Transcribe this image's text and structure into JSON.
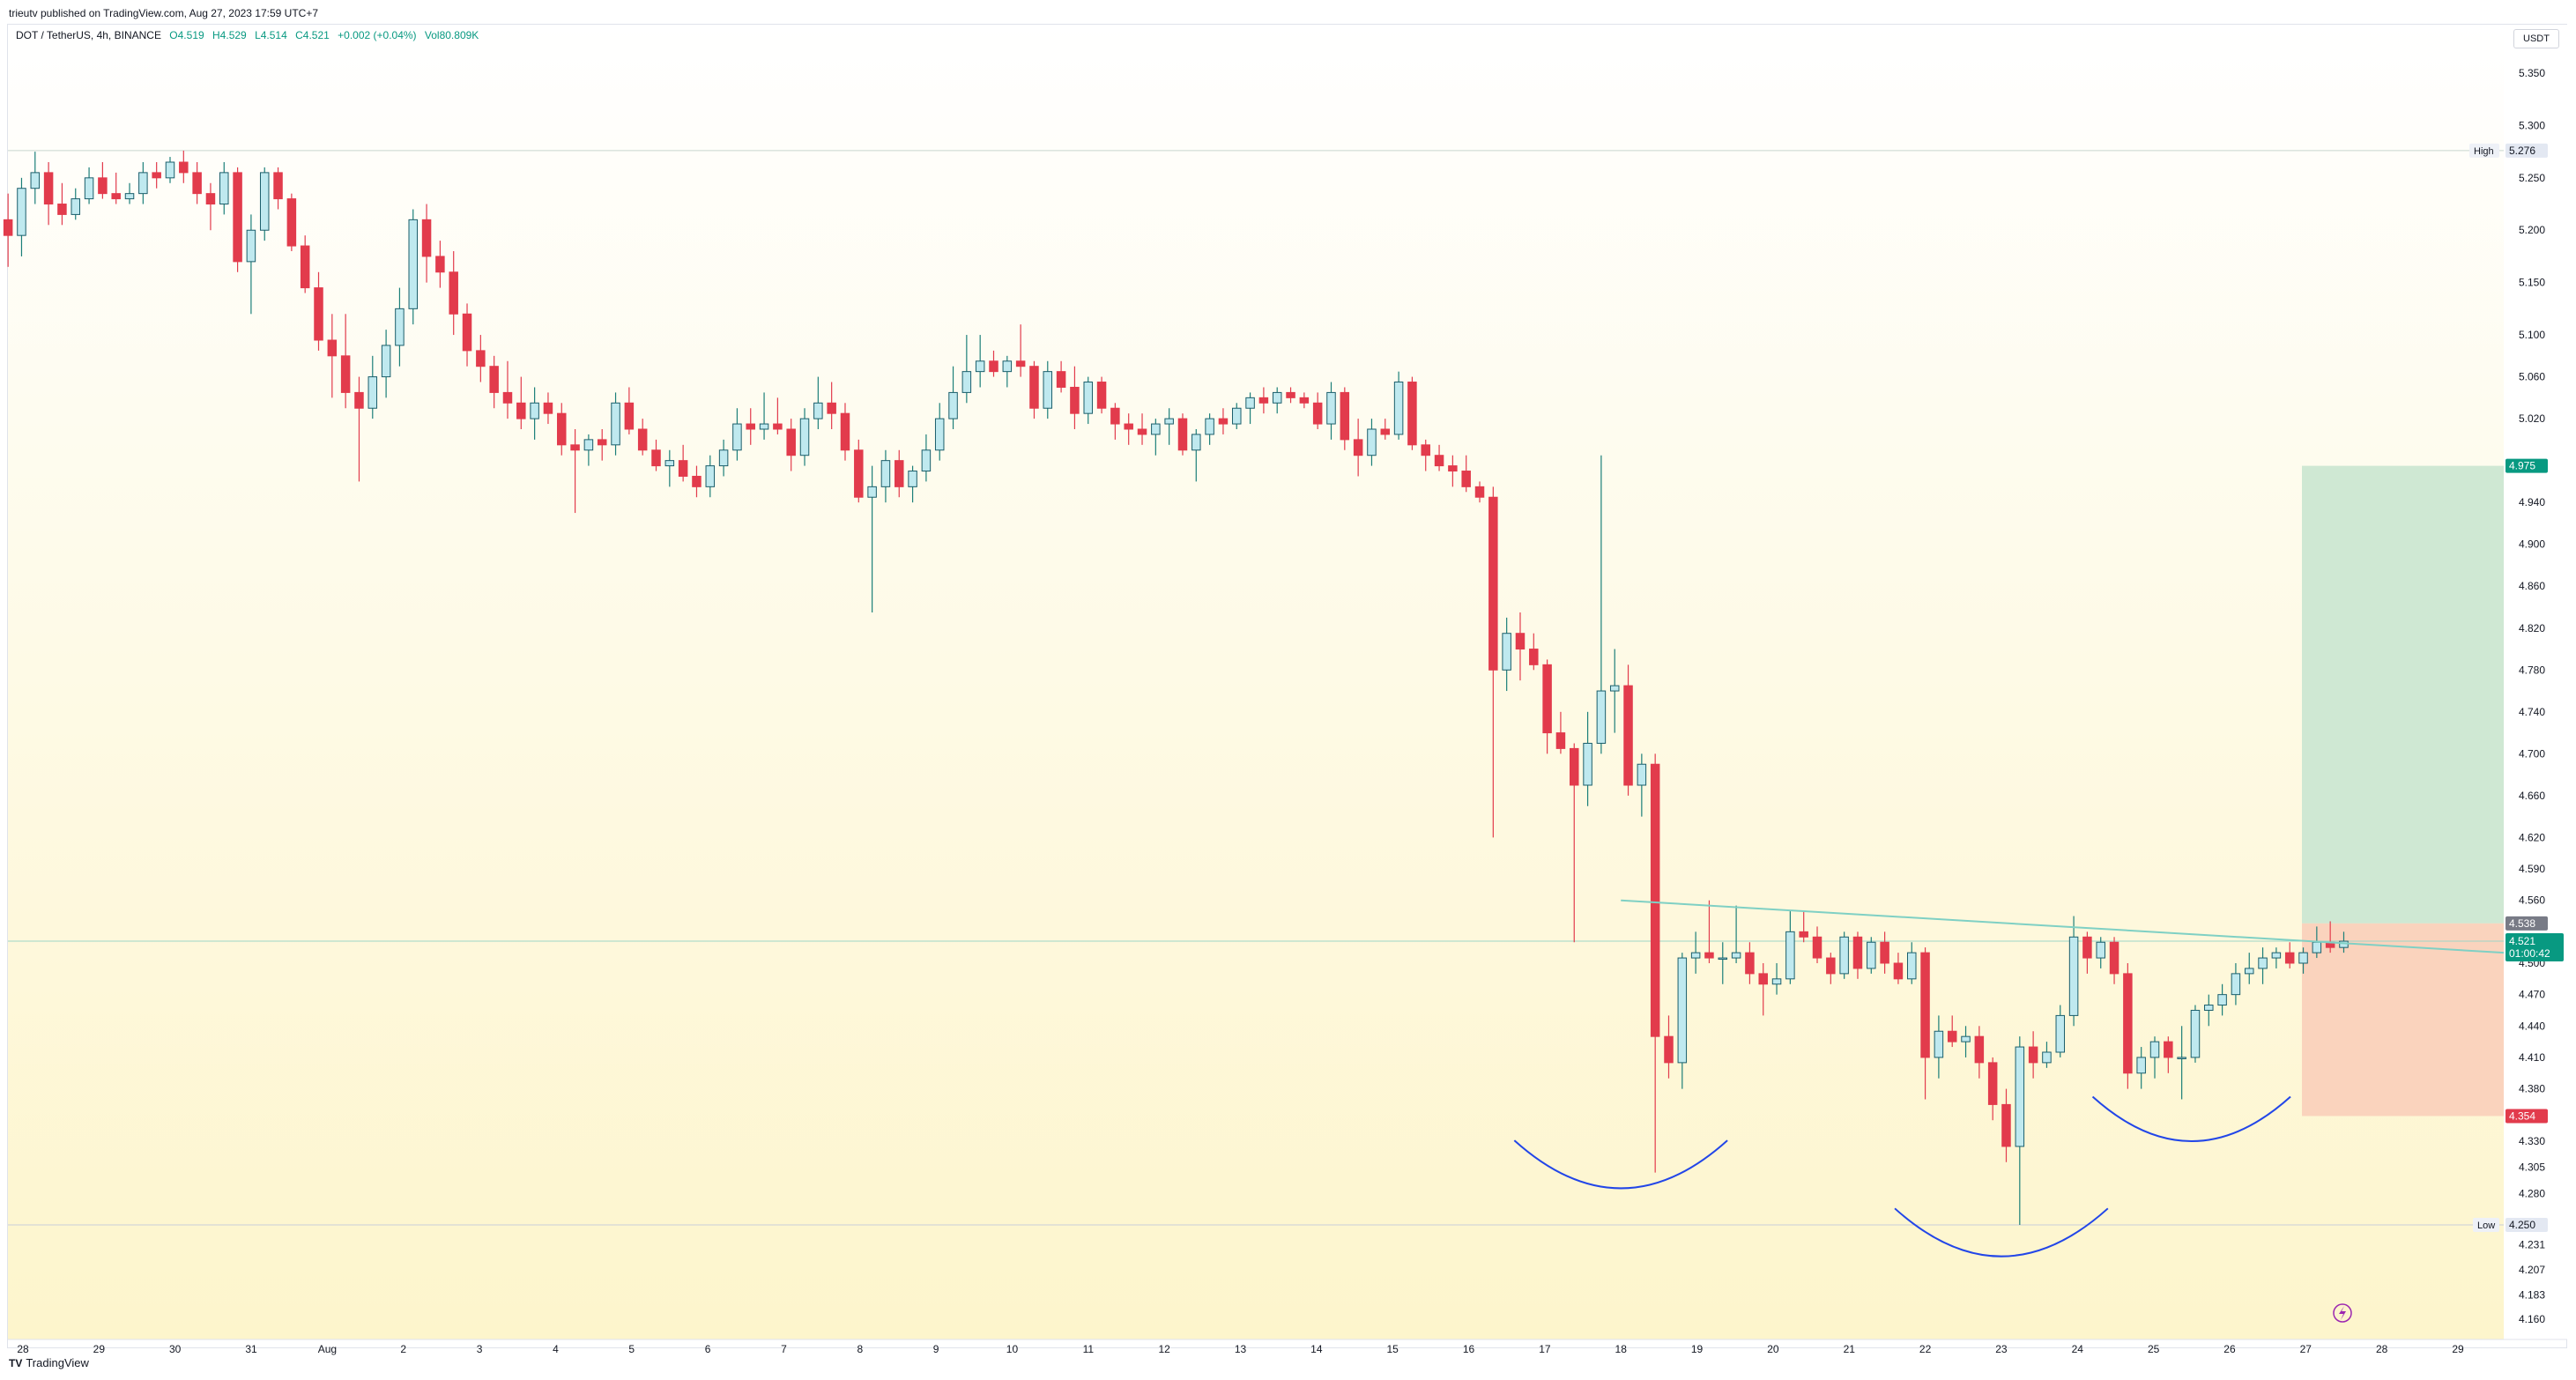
{
  "header": {
    "published": "trieutv published on TradingView.com, Aug 27, 2023 17:59 UTC+7"
  },
  "legend": {
    "symbol": "DOT / TetherUS, 4h, BINANCE",
    "open": "O4.519",
    "high": "H4.529",
    "low": "L4.514",
    "close": "C4.521",
    "change": "+0.002 (+0.04%)",
    "volume": "Vol80.809K"
  },
  "currency": "USDT",
  "footer": {
    "brand": "TradingView"
  },
  "colors": {
    "up": "#089981",
    "up_fill": "#bfe9ef",
    "down": "#e23b4c",
    "bg_top": "#ffffff",
    "bg_bottom": "#fdf6d2",
    "target_zone": "#cfe8d3",
    "stop_zone": "#fad3bd",
    "neckline": "#7fd0c4",
    "arcs": "#2246e8"
  },
  "chart_data": {
    "type": "candlestick",
    "timeframe": "4h",
    "y_axis": {
      "ticks": [
        5.35,
        5.3,
        5.25,
        5.2,
        5.15,
        5.1,
        5.06,
        5.02,
        4.94,
        4.9,
        4.86,
        4.82,
        4.78,
        4.74,
        4.7,
        4.66,
        4.62,
        4.59,
        4.56,
        4.5,
        4.47,
        4.44,
        4.41,
        4.38,
        4.33,
        4.305,
        4.28,
        4.231,
        4.207,
        4.183,
        4.16
      ],
      "range": [
        4.16,
        5.36
      ]
    },
    "x_axis": {
      "labels": [
        "28",
        "29",
        "30",
        "31",
        "Aug",
        "2",
        "3",
        "4",
        "5",
        "6",
        "7",
        "8",
        "9",
        "10",
        "11",
        "12",
        "13",
        "14",
        "15",
        "16",
        "17",
        "18",
        "19",
        "20",
        "21",
        "22",
        "23",
        "24",
        "25",
        "26",
        "27",
        "28",
        "29"
      ],
      "label_day_index": [
        0,
        1,
        2,
        3,
        4,
        5,
        6,
        7,
        8,
        9,
        10,
        11,
        12,
        13,
        14,
        15,
        16,
        17,
        18,
        19,
        20,
        21,
        22,
        23,
        24,
        25,
        26,
        27,
        28,
        29,
        30,
        31,
        32
      ]
    },
    "price_levels": {
      "high": {
        "label": "High",
        "value": 5.276
      },
      "low": {
        "label": "Low",
        "value": 4.25
      },
      "last": {
        "value": "4.521",
        "countdown": "01:00:42"
      },
      "entry": {
        "value": 4.538
      },
      "target": {
        "value": 4.975
      },
      "stop": {
        "value": 4.354
      }
    },
    "patterns": {
      "neckline_from": {
        "day": 21.0,
        "price": 4.56
      },
      "neckline_to": {
        "day": 33.2,
        "price": 4.51
      },
      "arcs": [
        {
          "center_day": 21.0,
          "bottom_price": 4.285,
          "half_width_days": 1.4
        },
        {
          "center_day": 26.0,
          "bottom_price": 4.22,
          "half_width_days": 1.4
        },
        {
          "center_day": 28.5,
          "bottom_price": 4.33,
          "half_width_days": 1.3
        }
      ]
    },
    "candles": [
      [
        5.22,
        5.245,
        5.185,
        5.235
      ],
      [
        5.235,
        5.255,
        5.175,
        5.21
      ],
      [
        5.21,
        5.235,
        5.165,
        5.195
      ],
      [
        5.195,
        5.25,
        5.175,
        5.24
      ],
      [
        5.24,
        5.275,
        5.225,
        5.255
      ],
      [
        5.255,
        5.265,
        5.205,
        5.225
      ],
      [
        5.225,
        5.245,
        5.205,
        5.215
      ],
      [
        5.215,
        5.24,
        5.21,
        5.23
      ],
      [
        5.23,
        5.26,
        5.225,
        5.25
      ],
      [
        5.25,
        5.265,
        5.23,
        5.235
      ],
      [
        5.235,
        5.255,
        5.225,
        5.23
      ],
      [
        5.23,
        5.245,
        5.225,
        5.235
      ],
      [
        5.235,
        5.265,
        5.225,
        5.255
      ],
      [
        5.255,
        5.265,
        5.24,
        5.25
      ],
      [
        5.25,
        5.27,
        5.245,
        5.265
      ],
      [
        5.265,
        5.276,
        5.245,
        5.255
      ],
      [
        5.255,
        5.265,
        5.225,
        5.235
      ],
      [
        5.235,
        5.245,
        5.2,
        5.225
      ],
      [
        5.225,
        5.265,
        5.215,
        5.255
      ],
      [
        5.255,
        5.26,
        5.16,
        5.17
      ],
      [
        5.17,
        5.215,
        5.12,
        5.2
      ],
      [
        5.2,
        5.26,
        5.19,
        5.255
      ],
      [
        5.255,
        5.26,
        5.22,
        5.23
      ],
      [
        5.23,
        5.235,
        5.18,
        5.185
      ],
      [
        5.185,
        5.195,
        5.14,
        5.145
      ],
      [
        5.145,
        5.16,
        5.085,
        5.095
      ],
      [
        5.095,
        5.12,
        5.04,
        5.08
      ],
      [
        5.08,
        5.12,
        5.03,
        5.045
      ],
      [
        5.045,
        5.06,
        4.96,
        5.03
      ],
      [
        5.03,
        5.08,
        5.02,
        5.06
      ],
      [
        5.06,
        5.105,
        5.04,
        5.09
      ],
      [
        5.09,
        5.145,
        5.07,
        5.125
      ],
      [
        5.125,
        5.22,
        5.11,
        5.21
      ],
      [
        5.21,
        5.225,
        5.15,
        5.175
      ],
      [
        5.175,
        5.19,
        5.145,
        5.16
      ],
      [
        5.16,
        5.18,
        5.1,
        5.12
      ],
      [
        5.12,
        5.13,
        5.07,
        5.085
      ],
      [
        5.085,
        5.1,
        5.055,
        5.07
      ],
      [
        5.07,
        5.08,
        5.03,
        5.045
      ],
      [
        5.045,
        5.075,
        5.02,
        5.035
      ],
      [
        5.035,
        5.06,
        5.01,
        5.02
      ],
      [
        5.02,
        5.05,
        5.0,
        5.035
      ],
      [
        5.035,
        5.045,
        5.015,
        5.025
      ],
      [
        5.025,
        5.035,
        4.985,
        4.995
      ],
      [
        4.995,
        5.01,
        4.93,
        4.99
      ],
      [
        4.99,
        5.005,
        4.975,
        5.0
      ],
      [
        5.0,
        5.01,
        4.98,
        4.995
      ],
      [
        4.995,
        5.045,
        4.985,
        5.035
      ],
      [
        5.035,
        5.05,
        5.005,
        5.01
      ],
      [
        5.01,
        5.02,
        4.985,
        4.99
      ],
      [
        4.99,
        5.0,
        4.97,
        4.975
      ],
      [
        4.975,
        4.99,
        4.955,
        4.98
      ],
      [
        4.98,
        4.995,
        4.96,
        4.965
      ],
      [
        4.965,
        4.975,
        4.945,
        4.955
      ],
      [
        4.955,
        4.985,
        4.945,
        4.975
      ],
      [
        4.975,
        5.0,
        4.965,
        4.99
      ],
      [
        4.99,
        5.03,
        4.98,
        5.015
      ],
      [
        5.015,
        5.03,
        4.995,
        5.01
      ],
      [
        5.01,
        5.045,
        5.0,
        5.015
      ],
      [
        5.015,
        5.04,
        5.005,
        5.01
      ],
      [
        5.01,
        5.02,
        4.97,
        4.985
      ],
      [
        4.985,
        5.03,
        4.975,
        5.02
      ],
      [
        5.02,
        5.06,
        5.01,
        5.035
      ],
      [
        5.035,
        5.055,
        5.01,
        5.025
      ],
      [
        5.025,
        5.035,
        4.98,
        4.99
      ],
      [
        4.99,
        5.0,
        4.94,
        4.945
      ],
      [
        4.945,
        4.975,
        4.835,
        4.955
      ],
      [
        4.955,
        4.99,
        4.94,
        4.98
      ],
      [
        4.98,
        4.99,
        4.945,
        4.955
      ],
      [
        4.955,
        4.975,
        4.94,
        4.97
      ],
      [
        4.97,
        5.005,
        4.96,
        4.99
      ],
      [
        4.99,
        5.035,
        4.98,
        5.02
      ],
      [
        5.02,
        5.07,
        5.01,
        5.045
      ],
      [
        5.045,
        5.1,
        5.035,
        5.065
      ],
      [
        5.065,
        5.1,
        5.05,
        5.075
      ],
      [
        5.075,
        5.085,
        5.06,
        5.065
      ],
      [
        5.065,
        5.08,
        5.05,
        5.075
      ],
      [
        5.075,
        5.11,
        5.06,
        5.07
      ],
      [
        5.07,
        5.075,
        5.02,
        5.03
      ],
      [
        5.03,
        5.075,
        5.02,
        5.065
      ],
      [
        5.065,
        5.075,
        5.045,
        5.05
      ],
      [
        5.05,
        5.07,
        5.01,
        5.025
      ],
      [
        5.025,
        5.06,
        5.015,
        5.055
      ],
      [
        5.055,
        5.06,
        5.025,
        5.03
      ],
      [
        5.03,
        5.035,
        5.0,
        5.015
      ],
      [
        5.015,
        5.025,
        4.995,
        5.01
      ],
      [
        5.01,
        5.025,
        4.995,
        5.005
      ],
      [
        5.005,
        5.02,
        4.985,
        5.015
      ],
      [
        5.015,
        5.03,
        4.995,
        5.02
      ],
      [
        5.02,
        5.025,
        4.985,
        4.99
      ],
      [
        4.99,
        5.01,
        4.96,
        5.005
      ],
      [
        5.005,
        5.025,
        4.995,
        5.02
      ],
      [
        5.02,
        5.03,
        5.005,
        5.015
      ],
      [
        5.015,
        5.035,
        5.01,
        5.03
      ],
      [
        5.03,
        5.045,
        5.015,
        5.04
      ],
      [
        5.04,
        5.05,
        5.025,
        5.035
      ],
      [
        5.035,
        5.05,
        5.025,
        5.045
      ],
      [
        5.045,
        5.05,
        5.035,
        5.04
      ],
      [
        5.04,
        5.045,
        5.03,
        5.035
      ],
      [
        5.035,
        5.045,
        5.01,
        5.015
      ],
      [
        5.015,
        5.055,
        5.0,
        5.045
      ],
      [
        5.045,
        5.05,
        4.99,
        5.0
      ],
      [
        5.0,
        5.02,
        4.965,
        4.985
      ],
      [
        4.985,
        5.02,
        4.975,
        5.01
      ],
      [
        5.01,
        5.02,
        5.0,
        5.005
      ],
      [
        5.005,
        5.065,
        5.0,
        5.055
      ],
      [
        5.055,
        5.06,
        4.99,
        4.995
      ],
      [
        4.995,
        5.0,
        4.97,
        4.985
      ],
      [
        4.985,
        4.995,
        4.97,
        4.975
      ],
      [
        4.975,
        4.985,
        4.955,
        4.97
      ],
      [
        4.97,
        4.985,
        4.95,
        4.955
      ],
      [
        4.955,
        4.96,
        4.94,
        4.945
      ],
      [
        4.945,
        4.955,
        4.62,
        4.78
      ],
      [
        4.78,
        4.83,
        4.76,
        4.815
      ],
      [
        4.815,
        4.835,
        4.77,
        4.8
      ],
      [
        4.8,
        4.815,
        4.78,
        4.785
      ],
      [
        4.785,
        4.79,
        4.7,
        4.72
      ],
      [
        4.72,
        4.74,
        4.7,
        4.705
      ],
      [
        4.705,
        4.71,
        4.52,
        4.67
      ],
      [
        4.67,
        4.74,
        4.65,
        4.71
      ],
      [
        4.71,
        4.985,
        4.7,
        4.76
      ],
      [
        4.76,
        4.8,
        4.72,
        4.765
      ],
      [
        4.765,
        4.785,
        4.66,
        4.67
      ],
      [
        4.67,
        4.7,
        4.64,
        4.69
      ],
      [
        4.69,
        4.7,
        4.3,
        4.43
      ],
      [
        4.43,
        4.45,
        4.39,
        4.405
      ],
      [
        4.405,
        4.51,
        4.38,
        4.505
      ],
      [
        4.505,
        4.53,
        4.49,
        4.51
      ],
      [
        4.51,
        4.56,
        4.5,
        4.505
      ],
      [
        4.505,
        4.52,
        4.48,
        4.505
      ],
      [
        4.505,
        4.555,
        4.5,
        4.51
      ],
      [
        4.51,
        4.52,
        4.48,
        4.49
      ],
      [
        4.49,
        4.5,
        4.45,
        4.48
      ],
      [
        4.48,
        4.5,
        4.47,
        4.485
      ],
      [
        4.485,
        4.55,
        4.48,
        4.53
      ],
      [
        4.53,
        4.55,
        4.52,
        4.525
      ],
      [
        4.525,
        4.535,
        4.5,
        4.505
      ],
      [
        4.505,
        4.51,
        4.48,
        4.49
      ],
      [
        4.49,
        4.53,
        4.485,
        4.525
      ],
      [
        4.525,
        4.53,
        4.485,
        4.495
      ],
      [
        4.495,
        4.525,
        4.49,
        4.52
      ],
      [
        4.52,
        4.53,
        4.49,
        4.5
      ],
      [
        4.5,
        4.51,
        4.48,
        4.485
      ],
      [
        4.485,
        4.52,
        4.48,
        4.51
      ],
      [
        4.51,
        4.515,
        4.37,
        4.41
      ],
      [
        4.41,
        4.45,
        4.39,
        4.435
      ],
      [
        4.435,
        4.45,
        4.42,
        4.425
      ],
      [
        4.425,
        4.44,
        4.41,
        4.43
      ],
      [
        4.43,
        4.44,
        4.39,
        4.405
      ],
      [
        4.405,
        4.41,
        4.35,
        4.365
      ],
      [
        4.365,
        4.38,
        4.31,
        4.325
      ],
      [
        4.325,
        4.43,
        4.25,
        4.42
      ],
      [
        4.42,
        4.435,
        4.39,
        4.405
      ],
      [
        4.405,
        4.425,
        4.4,
        4.415
      ],
      [
        4.415,
        4.46,
        4.41,
        4.45
      ],
      [
        4.45,
        4.545,
        4.44,
        4.525
      ],
      [
        4.525,
        4.53,
        4.49,
        4.505
      ],
      [
        4.505,
        4.525,
        4.495,
        4.52
      ],
      [
        4.52,
        4.525,
        4.48,
        4.49
      ],
      [
        4.49,
        4.5,
        4.38,
        4.395
      ],
      [
        4.395,
        4.42,
        4.38,
        4.41
      ],
      [
        4.41,
        4.43,
        4.39,
        4.425
      ],
      [
        4.425,
        4.43,
        4.395,
        4.41
      ],
      [
        4.41,
        4.44,
        4.37,
        4.41
      ],
      [
        4.41,
        4.46,
        4.405,
        4.455
      ],
      [
        4.455,
        4.47,
        4.44,
        4.46
      ],
      [
        4.46,
        4.48,
        4.45,
        4.47
      ],
      [
        4.47,
        4.5,
        4.46,
        4.49
      ],
      [
        4.49,
        4.51,
        4.48,
        4.495
      ],
      [
        4.495,
        4.515,
        4.48,
        4.505
      ],
      [
        4.505,
        4.515,
        4.495,
        4.51
      ],
      [
        4.51,
        4.52,
        4.495,
        4.5
      ],
      [
        4.5,
        4.515,
        4.49,
        4.51
      ],
      [
        4.51,
        4.535,
        4.505,
        4.52
      ],
      [
        4.52,
        4.54,
        4.51,
        4.515
      ],
      [
        4.515,
        4.53,
        4.51,
        4.521
      ]
    ]
  }
}
